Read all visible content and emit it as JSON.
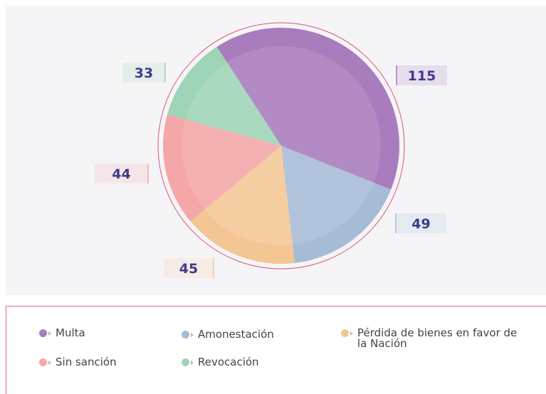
{
  "chart_data": {
    "type": "pie",
    "categories": [
      "Multa",
      "Amonestación",
      "Pérdida de bienes en favor de la Nación",
      "Sin sanción",
      "Revocación"
    ],
    "values": [
      115,
      49,
      45,
      44,
      33
    ],
    "colors": [
      "#a87cbd",
      "#a6bbd6",
      "#f4c694",
      "#f4a7a7",
      "#9ed4b7"
    ],
    "legend": "bottom"
  }
}
